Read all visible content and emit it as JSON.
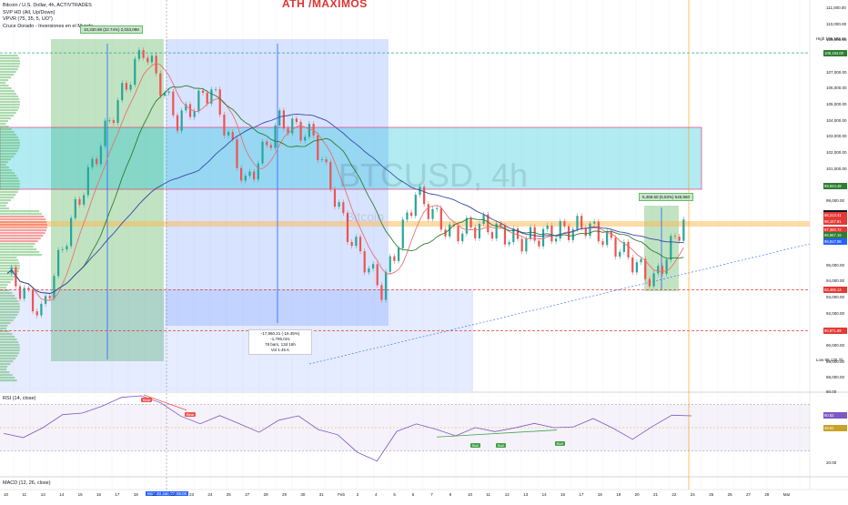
{
  "title": "ATH /MAXIMOS",
  "watermark": "BTCUSD, 4h",
  "watermark_sub": "Bitcoin",
  "legend": [
    "Bitcoin / U.S. Dollar, 4h, ACTIVTRADES",
    "SVP HD (All, Up/Down)",
    "VPVR (75, 35, 5, UO\")",
    "Cruce Dorado - Inversiones en el Mundo"
  ],
  "rsi_label": "RSI (14, close)",
  "macd_label": "MACD (12, 26, close)",
  "price_axis": [
    {
      "label": "111,000.00",
      "price": 111000
    },
    {
      "label": "110,000.00",
      "price": 110000
    },
    {
      "label": "109,000.00",
      "price": 109000
    },
    {
      "label": "107,000.00",
      "price": 107000
    },
    {
      "label": "106,000.00",
      "price": 106000
    },
    {
      "label": "105,000.00",
      "price": 105000
    },
    {
      "label": "104,000.00",
      "price": 104000
    },
    {
      "label": "103,000.00",
      "price": 103000
    },
    {
      "label": "102,000.00",
      "price": 102000
    },
    {
      "label": "101,000.00",
      "price": 101000
    },
    {
      "label": "100,000.00",
      "price": 100000
    },
    {
      "label": "99,000.00",
      "price": 99000
    },
    {
      "label": "95,000.00",
      "price": 95000
    },
    {
      "label": "94,000.00",
      "price": 94000
    },
    {
      "label": "93,000.00",
      "price": 93000
    },
    {
      "label": "92,000.00",
      "price": 92000
    },
    {
      "label": "91,000.00",
      "price": 91000
    },
    {
      "label": "90,000.00",
      "price": 90000
    },
    {
      "label": "89,000.00",
      "price": 89000
    },
    {
      "label": "88,000.00",
      "price": 88000
    }
  ],
  "price_tags": [
    {
      "label": "108,194.00",
      "color": "#2e7d32",
      "price": 108220
    },
    {
      "label": "99,944.48",
      "color": "#2e7d32",
      "price": 99930
    },
    {
      "label": "98,227.42",
      "color": "#131722",
      "price": 98250
    },
    {
      "label": "98,213.41",
      "color": "#e53935",
      "price": 98130
    },
    {
      "label": "98,107.81",
      "color": "#e53935",
      "price": 97730
    },
    {
      "label": "97,380.72",
      "color": "#e53935",
      "price": 97230
    },
    {
      "label": "96,967.19",
      "color": "#2e7d32",
      "price": 96880
    },
    {
      "label": "96,817.06",
      "color": "#2962ff",
      "price": 96500
    },
    {
      "label": "93,406.13",
      "color": "#e53935",
      "price": 93480
    },
    {
      "label": "90,871.89",
      "color": "#e53935",
      "price": 90920
    }
  ],
  "high_label": "High",
  "high_value": "109,182.41",
  "low_label": "Low",
  "low_value": "89,130.70",
  "rsi_axis": [
    {
      "label": "80.00",
      "value": 80
    },
    {
      "label": "20.00",
      "value": 20
    },
    {
      "label": "49.00",
      "value": 49
    }
  ],
  "rsi_tags": [
    {
      "label": "60.52",
      "color": "#7e57c2",
      "value": 60.5
    },
    {
      "label": "49.61",
      "color": "#c9a227",
      "value": 49.6
    }
  ],
  "signals": [
    {
      "label": "Bear",
      "color": "#ef5350"
    },
    {
      "label": "Bear",
      "color": "#ef5350"
    },
    {
      "label": "Bull",
      "color": "#43a047"
    },
    {
      "label": "Bull",
      "color": "#43a047"
    },
    {
      "label": "Bull",
      "color": "#43a047"
    }
  ],
  "dates": [
    "10",
    "11",
    "13",
    "14",
    "15",
    "16",
    "17",
    "18",
    "21",
    "22",
    "23",
    "24",
    "25",
    "27",
    "28",
    "29",
    "30",
    "31",
    "Feb",
    "3",
    "4",
    "5",
    "6",
    "7",
    "8",
    "10",
    "11",
    "12",
    "13",
    "14",
    "15",
    "17",
    "18",
    "19",
    "20",
    "21",
    "22",
    "24",
    "25",
    "26",
    "27",
    "28",
    "Mar"
  ],
  "date_highlight": "Mon 20 Jan '25  08:00",
  "measure_up": "10,330.98 (22.74%) 2,033,098",
  "measure_down": [
    "-17,960.21 (-16.45%) -1,796,021",
    "78 bars, 13d 16h",
    "Vol 1.45 K"
  ],
  "measure_small": "5,459.60 (5.83%) 545,960",
  "chart_data": [
    {
      "type": "line",
      "name": "BTCUSD 4h price",
      "x": [
        "Jan 10",
        "Jan 13",
        "Jan 15",
        "Jan 17",
        "Jan 20",
        "Jan 22",
        "Jan 24",
        "Jan 27",
        "Jan 29",
        "Jan 31",
        "Feb 2",
        "Feb 3",
        "Feb 5",
        "Feb 7",
        "Feb 9",
        "Feb 11",
        "Feb 13",
        "Feb 15",
        "Feb 17",
        "Feb 19",
        "Feb 21"
      ],
      "y": [
        94500,
        92000,
        98500,
        104000,
        108500,
        104000,
        106000,
        100000,
        104000,
        103000,
        97000,
        93500,
        99500,
        97000,
        97500,
        96500,
        97000,
        97500,
        96000,
        94000,
        98300
      ],
      "ylim": [
        88000,
        111000
      ],
      "high": 109182.41,
      "low": 89130.7
    },
    {
      "type": "line",
      "name": "RSI (14, close)",
      "ylim": [
        15,
        85
      ],
      "y": [
        45,
        40,
        52,
        60,
        62,
        70,
        74,
        78,
        72,
        58,
        55,
        60,
        52,
        48,
        55,
        60,
        50,
        42,
        30,
        22,
        45,
        55,
        48,
        42,
        52,
        45,
        50,
        55,
        48,
        52,
        58,
        48,
        42,
        50,
        60,
        62
      ]
    }
  ]
}
